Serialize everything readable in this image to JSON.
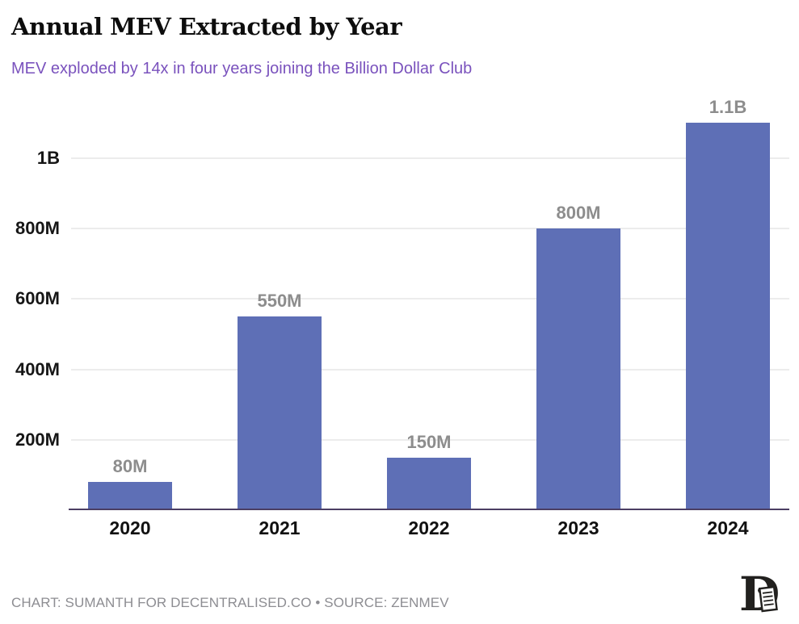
{
  "header": {
    "title": "Annual MEV Extracted by Year",
    "subtitle": "MEV exploded by 14x in four years joining the Billion Dollar Club"
  },
  "chart_data": {
    "type": "bar",
    "title": "Annual MEV Extracted by Year",
    "subtitle": "MEV exploded by 14x in four years joining the Billion Dollar Club",
    "categories": [
      "2020",
      "2021",
      "2022",
      "2023",
      "2024"
    ],
    "values": [
      80,
      550,
      150,
      800,
      1100
    ],
    "values_unit": "millions",
    "value_labels": [
      "80M",
      "550M",
      "150M",
      "800M",
      "1.1B"
    ],
    "y_ticks": [
      {
        "value": 200,
        "label": "200M"
      },
      {
        "value": 400,
        "label": "400M"
      },
      {
        "value": 600,
        "label": "600M"
      },
      {
        "value": 800,
        "label": "800M"
      },
      {
        "value": 1000,
        "label": "1B"
      }
    ],
    "ylim": [
      0,
      1175
    ],
    "grid": true,
    "legend": false
  },
  "footer": {
    "attribution": "CHART: SUMANTH FOR DECENTRALISED.CO • SOURCE: ZENMEV",
    "logo_name": "decentralised-logo"
  },
  "colors": {
    "background": "#ffffff",
    "bar": "#5e6fb6",
    "subtitle": "#7a52bd",
    "value_label": "#8d8d8d",
    "tick_label": "#161616",
    "gridline": "#ececec",
    "axis_line": "#4b3e63",
    "footer_text": "#8d8d92"
  }
}
